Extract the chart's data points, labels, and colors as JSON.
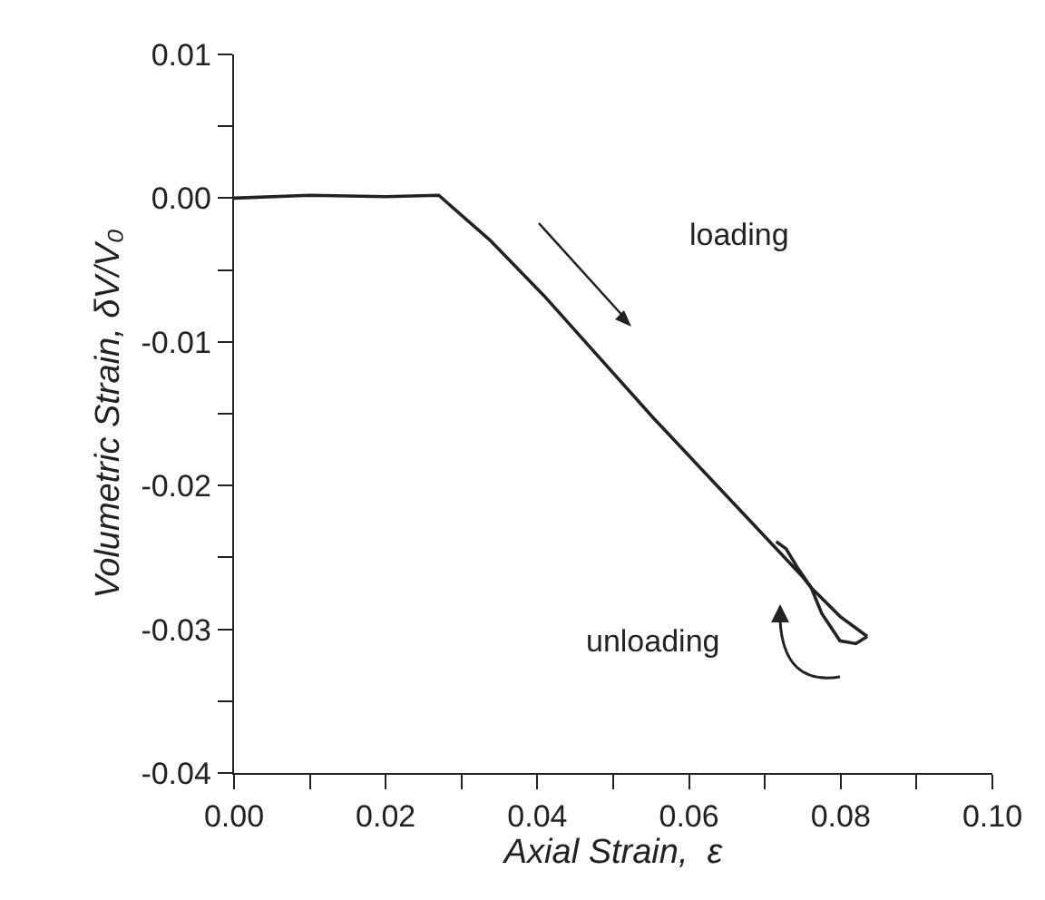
{
  "chart_data": {
    "type": "line",
    "xlabel": "Axial Strain,  ε",
    "ylabel": "Volumetric Strain, δV/V₀",
    "xlim": [
      0,
      0.1
    ],
    "ylim": [
      -0.04,
      0.01
    ],
    "xticks": [
      {
        "value": 0,
        "label": "0.00"
      },
      {
        "value": 0.01,
        "label": null
      },
      0.02,
      {
        "value": 0.03,
        "label": null
      },
      0.04,
      {
        "value": 0.05,
        "label": null
      },
      0.06,
      {
        "value": 0.07,
        "label": null
      },
      0.08,
      {
        "value": 0.09,
        "label": null
      },
      {
        "value": 0.1,
        "label": "0.10"
      }
    ],
    "yticks": [
      -0.04,
      {
        "value": -0.035,
        "label": null
      },
      -0.03,
      {
        "value": -0.025,
        "label": null
      },
      -0.02,
      {
        "value": -0.015,
        "label": null
      },
      -0.01,
      {
        "value": -0.005,
        "label": null
      },
      {
        "value": 0,
        "label": "0.00"
      },
      {
        "value": 0.005,
        "label": null
      },
      0.01
    ],
    "marker": "none",
    "line_style": "solid",
    "series": [
      {
        "color": "#222222",
        "x": [
          0,
          0.01,
          0.02,
          0.027,
          0.0337,
          0.0409,
          0.0553,
          0.0749,
          0.0761,
          0.0799,
          0.0835
        ],
        "values": [
          0,
          0.0002,
          0.0001,
          0.0002,
          -0.0029,
          -0.0068,
          -0.0153,
          -0.0263,
          -0.0271,
          -0.0291,
          -0.0305
        ]
      },
      {
        "color": "#222222",
        "x": [
          0.0835,
          0.082,
          0.0799,
          0.0775,
          0.0761,
          0.0744,
          0.0728,
          0.0715
        ],
        "values": [
          -0.0305,
          -0.031,
          -0.0308,
          -0.0289,
          -0.0271,
          -0.0258,
          -0.0244,
          -0.0239
        ]
      }
    ],
    "annotations": [
      "loading",
      "unloading"
    ]
  }
}
